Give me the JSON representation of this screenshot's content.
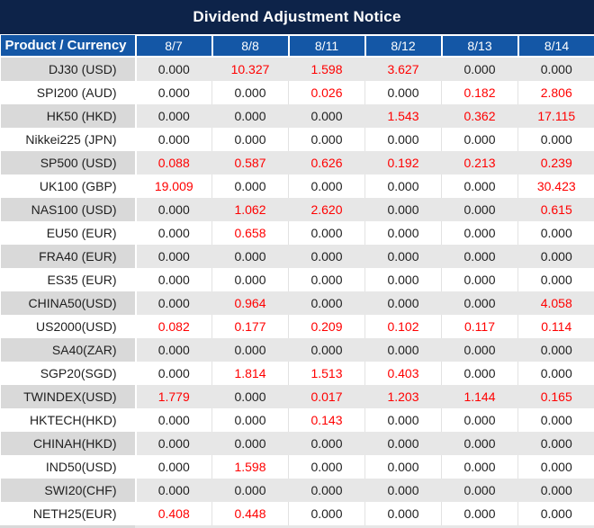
{
  "title": "Dividend Adjustment Notice",
  "header": {
    "product_label": "Product / Currency",
    "dates": [
      "8/7",
      "8/8",
      "8/11",
      "8/12",
      "8/13",
      "8/14"
    ]
  },
  "rows": [
    {
      "product": "DJ30 (USD)",
      "values": [
        "0.000",
        "10.327",
        "1.598",
        "3.627",
        "0.000",
        "0.000"
      ],
      "red": [
        0,
        1,
        1,
        1,
        0,
        0
      ]
    },
    {
      "product": "SPI200 (AUD)",
      "values": [
        "0.000",
        "0.000",
        "0.026",
        "0.000",
        "0.182",
        "2.806"
      ],
      "red": [
        0,
        0,
        1,
        0,
        1,
        1
      ]
    },
    {
      "product": "HK50 (HKD)",
      "values": [
        "0.000",
        "0.000",
        "0.000",
        "1.543",
        "0.362",
        "17.115"
      ],
      "red": [
        0,
        0,
        0,
        1,
        1,
        1
      ]
    },
    {
      "product": "Nikkei225 (JPN)",
      "values": [
        "0.000",
        "0.000",
        "0.000",
        "0.000",
        "0.000",
        "0.000"
      ],
      "red": [
        0,
        0,
        0,
        0,
        0,
        0
      ]
    },
    {
      "product": "SP500 (USD)",
      "values": [
        "0.088",
        "0.587",
        "0.626",
        "0.192",
        "0.213",
        "0.239"
      ],
      "red": [
        1,
        1,
        1,
        1,
        1,
        1
      ]
    },
    {
      "product": "UK100 (GBP)",
      "values": [
        "19.009",
        "0.000",
        "0.000",
        "0.000",
        "0.000",
        "30.423"
      ],
      "red": [
        1,
        0,
        0,
        0,
        0,
        1
      ]
    },
    {
      "product": "NAS100 (USD)",
      "values": [
        "0.000",
        "1.062",
        "2.620",
        "0.000",
        "0.000",
        "0.615"
      ],
      "red": [
        0,
        1,
        1,
        0,
        0,
        1
      ]
    },
    {
      "product": "EU50 (EUR)",
      "values": [
        "0.000",
        "0.658",
        "0.000",
        "0.000",
        "0.000",
        "0.000"
      ],
      "red": [
        0,
        1,
        0,
        0,
        0,
        0
      ]
    },
    {
      "product": "FRA40 (EUR)",
      "values": [
        "0.000",
        "0.000",
        "0.000",
        "0.000",
        "0.000",
        "0.000"
      ],
      "red": [
        0,
        0,
        0,
        0,
        0,
        0
      ]
    },
    {
      "product": "ES35 (EUR)",
      "values": [
        "0.000",
        "0.000",
        "0.000",
        "0.000",
        "0.000",
        "0.000"
      ],
      "red": [
        0,
        0,
        0,
        0,
        0,
        0
      ]
    },
    {
      "product": "CHINA50(USD)",
      "values": [
        "0.000",
        "0.964",
        "0.000",
        "0.000",
        "0.000",
        "4.058"
      ],
      "red": [
        0,
        1,
        0,
        0,
        0,
        1
      ]
    },
    {
      "product": "US2000(USD)",
      "values": [
        "0.082",
        "0.177",
        "0.209",
        "0.102",
        "0.117",
        "0.114"
      ],
      "red": [
        1,
        1,
        1,
        1,
        1,
        1
      ]
    },
    {
      "product": "SA40(ZAR)",
      "values": [
        "0.000",
        "0.000",
        "0.000",
        "0.000",
        "0.000",
        "0.000"
      ],
      "red": [
        0,
        0,
        0,
        0,
        0,
        0
      ]
    },
    {
      "product": "SGP20(SGD)",
      "values": [
        "0.000",
        "1.814",
        "1.513",
        "0.403",
        "0.000",
        "0.000"
      ],
      "red": [
        0,
        1,
        1,
        1,
        0,
        0
      ]
    },
    {
      "product": "TWINDEX(USD)",
      "values": [
        "1.779",
        "0.000",
        "0.017",
        "1.203",
        "1.144",
        "0.165"
      ],
      "red": [
        1,
        0,
        1,
        1,
        1,
        1
      ]
    },
    {
      "product": "HKTECH(HKD)",
      "values": [
        "0.000",
        "0.000",
        "0.143",
        "0.000",
        "0.000",
        "0.000"
      ],
      "red": [
        0,
        0,
        1,
        0,
        0,
        0
      ]
    },
    {
      "product": "CHINAH(HKD)",
      "values": [
        "0.000",
        "0.000",
        "0.000",
        "0.000",
        "0.000",
        "0.000"
      ],
      "red": [
        0,
        0,
        0,
        0,
        0,
        0
      ]
    },
    {
      "product": "IND50(USD)",
      "values": [
        "0.000",
        "1.598",
        "0.000",
        "0.000",
        "0.000",
        "0.000"
      ],
      "red": [
        0,
        1,
        0,
        0,
        0,
        0
      ]
    },
    {
      "product": "SWI20(CHF)",
      "values": [
        "0.000",
        "0.000",
        "0.000",
        "0.000",
        "0.000",
        "0.000"
      ],
      "red": [
        0,
        0,
        0,
        0,
        0,
        0
      ]
    },
    {
      "product": "NETH25(EUR)",
      "values": [
        "0.408",
        "0.448",
        "0.000",
        "0.000",
        "0.000",
        "0.000"
      ],
      "red": [
        1,
        1,
        0,
        0,
        0,
        0
      ]
    }
  ],
  "colors": {
    "title_bar_bg": "#0d2349",
    "header_bg": "#1457a6",
    "header_text": "#ffffff",
    "row_gray_product_bg": "#d9d9d9",
    "row_gray_value_bg": "#e7e7e7",
    "row_white_bg": "#ffffff",
    "value_black": "#1f1f1f",
    "value_red": "#ff0000"
  }
}
